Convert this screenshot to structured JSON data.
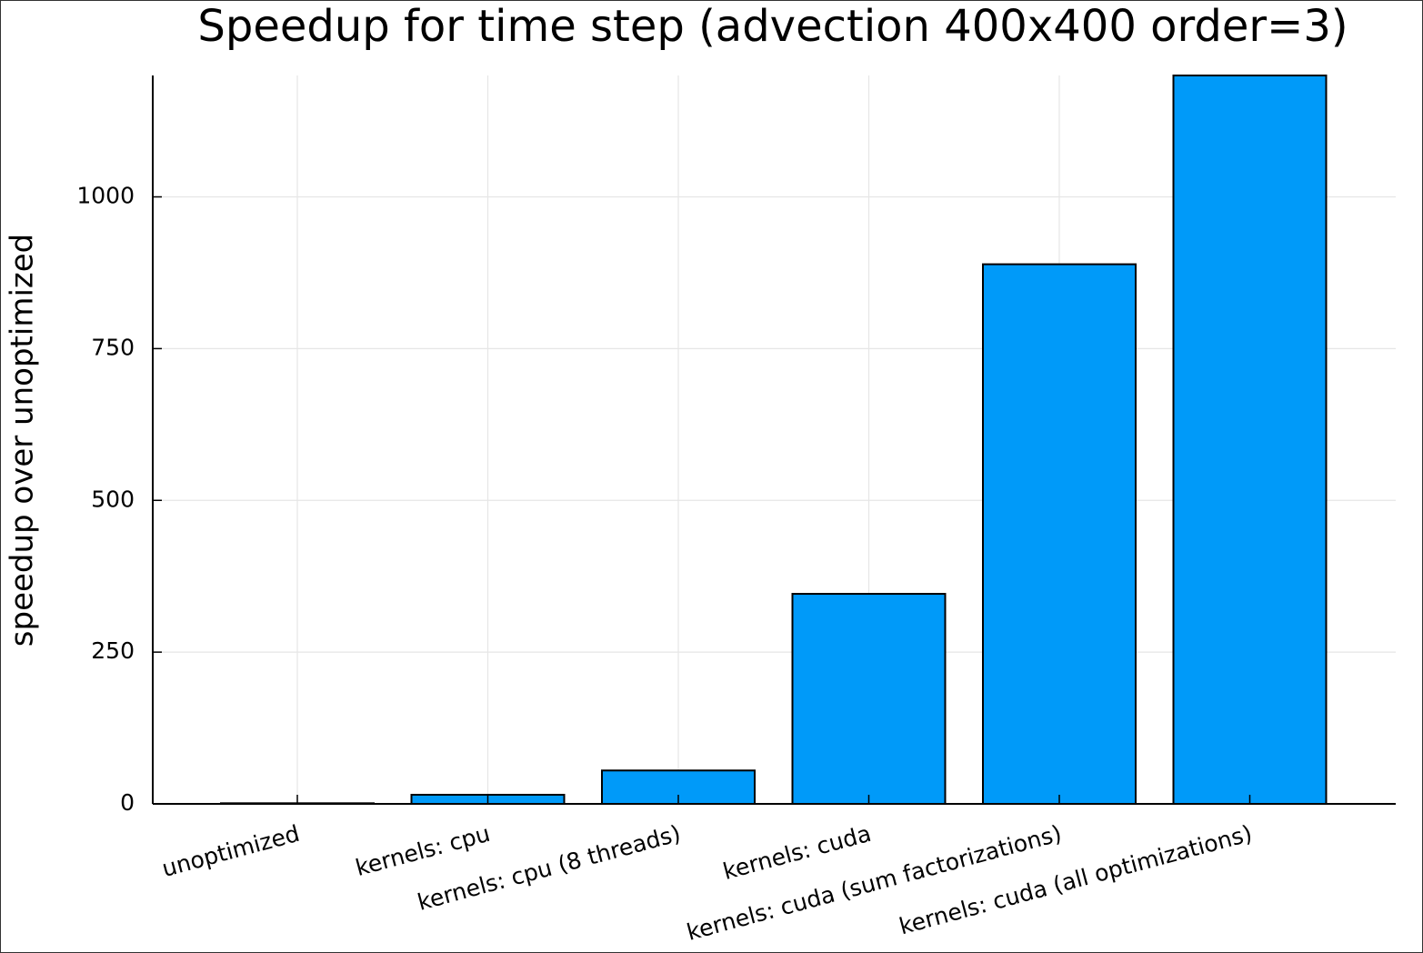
{
  "chart_data": {
    "type": "bar",
    "title": "Speedup for time step (advection 400x400 order=3)",
    "y_label": "speedup over unoptimized",
    "categories": [
      "unoptimized",
      "kernels: cpu",
      "kernels: cpu (8 threads)",
      "kernels: cuda",
      "kernels: cuda (sum factorizations)",
      "kernels: cuda (all optimizations)"
    ],
    "values": [
      1,
      15,
      55,
      346,
      889,
      1200
    ],
    "color": "#009af9",
    "ylim": [
      0,
      1200
    ],
    "yticks": [
      0,
      250,
      500,
      750,
      1000
    ],
    "grid": true
  }
}
